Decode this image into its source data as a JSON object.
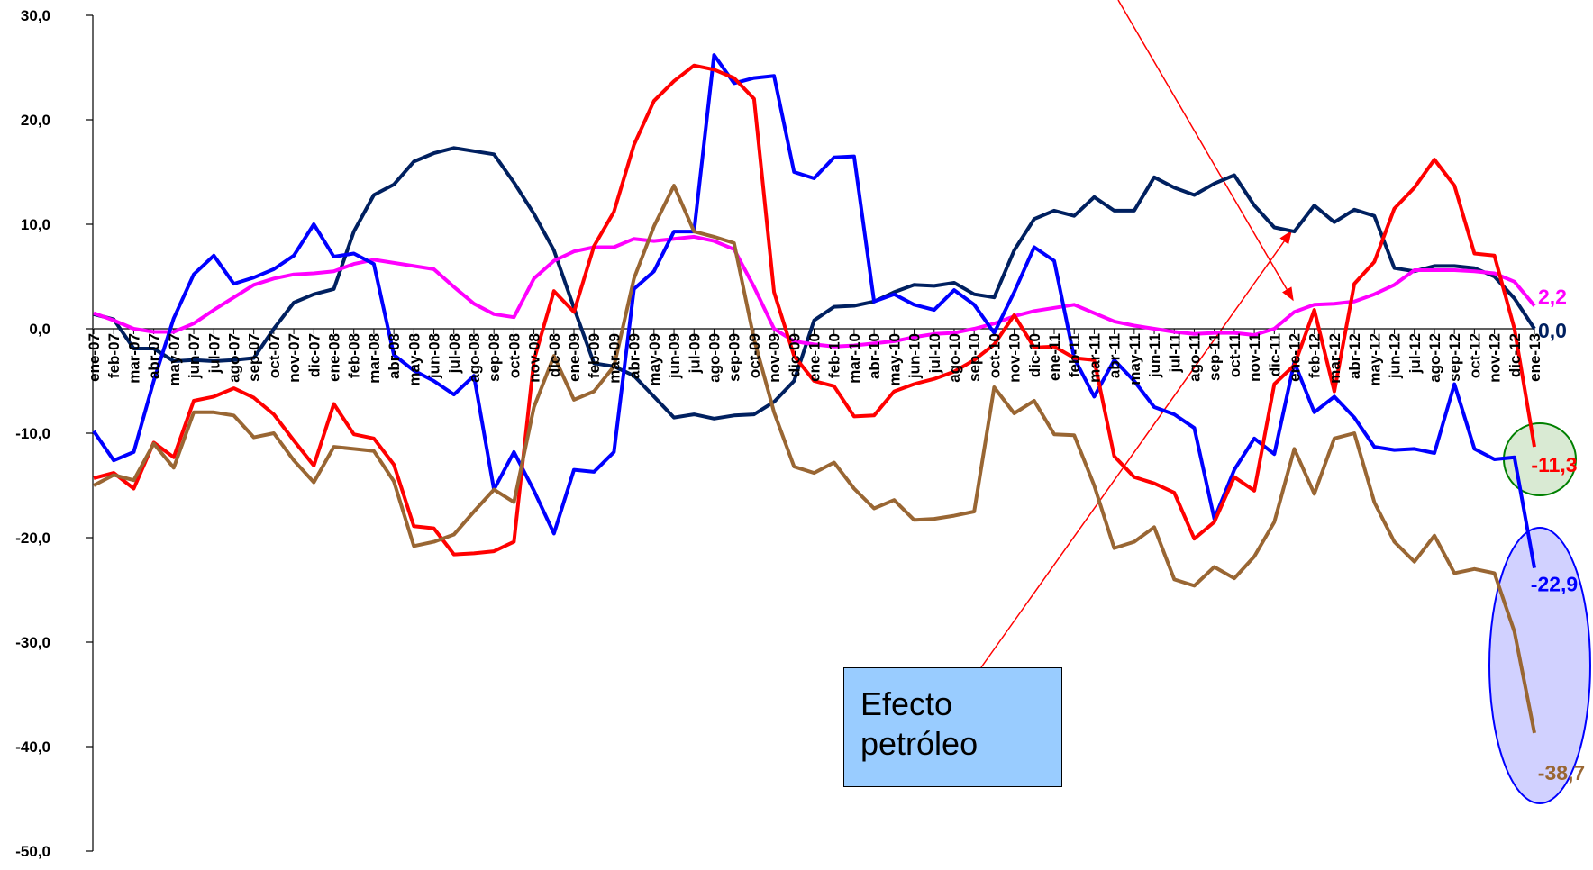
{
  "chart_data": {
    "type": "line",
    "categories": [
      "ene-07",
      "feb-07",
      "mar-07",
      "abr-07",
      "may-07",
      "jun-07",
      "jul-07",
      "ago-07",
      "sep-07",
      "oct-07",
      "nov-07",
      "dic-07",
      "ene-08",
      "feb-08",
      "mar-08",
      "abr-08",
      "may-08",
      "jun-08",
      "jul-08",
      "ago-08",
      "sep-08",
      "oct-08",
      "nov-08",
      "dic-08",
      "ene-09",
      "feb-09",
      "mar-09",
      "abr-09",
      "may-09",
      "jun-09",
      "jul-09",
      "ago-09",
      "sep-09",
      "oct-09",
      "nov-09",
      "dic-09",
      "ene-10",
      "feb-10",
      "mar-10",
      "abr-10",
      "may-10",
      "jun-10",
      "jul-10",
      "ago-10",
      "sep-10",
      "oct-10",
      "nov-10",
      "dic-10",
      "ene-11",
      "feb-11",
      "mar-11",
      "abr-11",
      "may-11",
      "jun-11",
      "jul-11",
      "ago-11",
      "sep-11",
      "oct-11",
      "nov-11",
      "dic-11",
      "ene-12",
      "feb-12",
      "mar-12",
      "abr-12",
      "may-12",
      "jun-12",
      "jul-12",
      "ago-12",
      "sep-12",
      "oct-12",
      "nov-12",
      "dic-12",
      "ene-13"
    ],
    "ylim": [
      -50,
      30
    ],
    "yticks": [
      {
        "value": -50,
        "label": "-50,0"
      },
      {
        "value": -40,
        "label": "-40,0"
      },
      {
        "value": -30,
        "label": "-30,0"
      },
      {
        "value": -20,
        "label": "-20,0"
      },
      {
        "value": -10,
        "label": "-10,0"
      },
      {
        "value": 0,
        "label": "0,0"
      },
      {
        "value": 10,
        "label": "10,0"
      },
      {
        "value": 20,
        "label": "20,0"
      },
      {
        "value": 30,
        "label": "30,0"
      }
    ],
    "series": [
      {
        "color": "#002060",
        "values": [
          1.4,
          0.9,
          -1.9,
          -1.9,
          -3.1,
          -3.0,
          -3.1,
          -3.0,
          -2.8,
          0.0,
          2.5,
          3.3,
          3.8,
          9.3,
          12.8,
          13.8,
          16.0,
          16.8,
          17.3,
          17.0,
          16.7,
          14.0,
          11.0,
          7.5,
          2.0,
          -3.3,
          -3.6,
          -4.5,
          -6.5,
          -8.5,
          -8.2,
          -8.6,
          -8.3,
          -8.2,
          -7.0,
          -5.0,
          0.8,
          2.1,
          2.2,
          2.6,
          3.5,
          4.2,
          4.1,
          4.4,
          3.3,
          3.0,
          7.5,
          10.5,
          11.3,
          10.8,
          12.6,
          11.3,
          11.3,
          14.5,
          13.5,
          12.8,
          13.9,
          14.7,
          11.8,
          9.7,
          9.3,
          11.8,
          10.2,
          11.4,
          10.8,
          5.8,
          5.5,
          6.0,
          6.0,
          5.8,
          5.0,
          2.9,
          0.0
        ],
        "value_labels": [
          null,
          null,
          null,
          null,
          null,
          null,
          null,
          null,
          null,
          null,
          null,
          null,
          null,
          null,
          null,
          null,
          null,
          null,
          null,
          null,
          null,
          null,
          null,
          null,
          null,
          null,
          null,
          null,
          null,
          null,
          null,
          null,
          null,
          null,
          null,
          null,
          null,
          null,
          null,
          null,
          null,
          null,
          null,
          null,
          null,
          null,
          null,
          null,
          null,
          null,
          null,
          null,
          null,
          null,
          null,
          null,
          null,
          null,
          null,
          null,
          null,
          null,
          null,
          null,
          null,
          null,
          null,
          null,
          null,
          null,
          null,
          null,
          "0,0"
        ]
      },
      {
        "color": "#ff00ff",
        "values": [
          1.5,
          0.8,
          0,
          -0.3,
          -0.3,
          0.5,
          1.8,
          3,
          4.2,
          4.8,
          5.2,
          5.3,
          5.5,
          6.2,
          6.6,
          6.3,
          6.0,
          5.7,
          4,
          2.4,
          1.4,
          1.1,
          4.8,
          6.5,
          7.4,
          7.8,
          7.8,
          8.6,
          8.4,
          8.6,
          8.8,
          8.4,
          7.6,
          4,
          0,
          -1.2,
          -1.5,
          -1.7,
          -1.6,
          -1.4,
          -1.2,
          -0.8,
          -0.5,
          -0.4,
          0,
          0.5,
          1.2,
          1.7,
          2.0,
          2.3,
          1.5,
          0.7,
          0.3,
          0,
          -0.3,
          -0.5,
          -0.4,
          -0.4,
          -0.6,
          0,
          1.6,
          2.3,
          2.4,
          2.6,
          3.3,
          4.2,
          5.6,
          5.6,
          5.6,
          5.5,
          5.3,
          4.5,
          2.2
        ],
        "value_labels": [
          null,
          null,
          null,
          null,
          null,
          null,
          null,
          null,
          null,
          null,
          null,
          null,
          null,
          null,
          null,
          null,
          null,
          null,
          null,
          null,
          null,
          null,
          null,
          null,
          null,
          null,
          null,
          null,
          null,
          null,
          null,
          null,
          null,
          null,
          null,
          null,
          null,
          null,
          null,
          null,
          null,
          null,
          null,
          null,
          null,
          null,
          null,
          null,
          null,
          null,
          null,
          null,
          null,
          null,
          null,
          null,
          null,
          null,
          null,
          null,
          null,
          null,
          null,
          null,
          null,
          null,
          null,
          null,
          null,
          null,
          null,
          null,
          "2,2"
        ]
      },
      {
        "color": "#0000ff",
        "values": [
          -9.8,
          -12.6,
          -11.8,
          -5,
          1,
          5.2,
          7,
          4.3,
          4.9,
          5.7,
          7,
          10,
          6.9,
          7.2,
          6.2,
          -2.5,
          -4,
          -5,
          -6.3,
          -4.5,
          -15.4,
          -11.8,
          -15.5,
          -19.6,
          -13.5,
          -13.7,
          -11.8,
          3.8,
          5.5,
          9.3,
          9.3,
          26.2,
          23.5,
          24,
          24.2,
          15,
          14.4,
          16.4,
          16.5,
          2.6,
          3.3,
          2.3,
          1.8,
          3.7,
          2.3,
          -0.4,
          3.5,
          7.8,
          6.5,
          -2.8,
          -6.5,
          -3,
          -5,
          -7.5,
          -8.2,
          -9.5,
          -18.2,
          -13.5,
          -10.5,
          -12,
          -3.2,
          -8,
          -6.5,
          -8.5,
          -11.3,
          -11.6,
          -11.5,
          -11.9,
          -5.3,
          -11.5,
          -12.5,
          -12.3,
          -22.9
        ],
        "value_labels": [
          null,
          null,
          null,
          null,
          null,
          null,
          null,
          null,
          null,
          null,
          null,
          null,
          null,
          null,
          null,
          null,
          null,
          null,
          null,
          null,
          null,
          null,
          null,
          null,
          null,
          null,
          null,
          null,
          null,
          null,
          null,
          null,
          null,
          null,
          null,
          null,
          null,
          null,
          null,
          null,
          null,
          null,
          null,
          null,
          null,
          null,
          null,
          null,
          null,
          null,
          null,
          null,
          null,
          null,
          null,
          null,
          null,
          null,
          null,
          null,
          null,
          null,
          null,
          null,
          null,
          null,
          null,
          null,
          null,
          null,
          null,
          null,
          "-22,9"
        ]
      },
      {
        "color": "#ff0000",
        "values": [
          -14.3,
          -13.8,
          -15.3,
          -10.9,
          -12.3,
          -6.9,
          -6.5,
          -5.7,
          -6.6,
          -8.2,
          -10.7,
          -13.1,
          -7.2,
          -10.1,
          -10.5,
          -13,
          -18.9,
          -19.1,
          -21.6,
          -21.5,
          -21.3,
          -20.4,
          -3,
          3.6,
          1.6,
          7.9,
          11.2,
          17.6,
          21.8,
          23.7,
          25.2,
          24.8,
          24,
          22,
          3.5,
          -2.6,
          -5,
          -5.5,
          -8.4,
          -8.3,
          -6,
          -5.3,
          -4.8,
          -4.1,
          -3,
          -1.5,
          1.3,
          -1.8,
          -1.7,
          -2.8,
          -3,
          -12.2,
          -14.2,
          -14.8,
          -15.7,
          -20.1,
          -18.5,
          -14.2,
          -15.5,
          -5.3,
          -3.5,
          1.8,
          -6,
          4.3,
          6.4,
          11.5,
          13.5,
          16.2,
          13.7,
          7.2,
          7.0,
          0,
          -11.3
        ],
        "value_labels": [
          null,
          null,
          null,
          null,
          null,
          null,
          null,
          null,
          null,
          null,
          null,
          null,
          null,
          null,
          null,
          null,
          null,
          null,
          null,
          null,
          null,
          null,
          null,
          null,
          null,
          null,
          null,
          null,
          null,
          null,
          null,
          null,
          null,
          null,
          null,
          null,
          null,
          null,
          null,
          null,
          null,
          null,
          null,
          null,
          null,
          null,
          null,
          null,
          null,
          null,
          null,
          null,
          null,
          null,
          null,
          null,
          null,
          null,
          null,
          null,
          null,
          null,
          null,
          null,
          null,
          null,
          null,
          null,
          null,
          null,
          null,
          null,
          "-11,3"
        ]
      },
      {
        "color": "#996633",
        "values": [
          -15,
          -14,
          -14.5,
          -11,
          -13.3,
          -8,
          -8,
          -8.3,
          -10.4,
          -10,
          -12.6,
          -14.7,
          -11.3,
          -11.5,
          -11.7,
          -14.6,
          -20.8,
          -20.4,
          -19.7,
          -17.5,
          -15.4,
          -16.6,
          -7.5,
          -2.6,
          -6.8,
          -6,
          -3.6,
          4.8,
          9.8,
          13.7,
          9.3,
          8.8,
          8.2,
          -1,
          -8,
          -13.2,
          -13.8,
          -12.8,
          -15.3,
          -17.2,
          -16.4,
          -18.3,
          -18.2,
          -17.9,
          -17.5,
          -5.6,
          -8.1,
          -6.9,
          -10.1,
          -10.2,
          -15,
          -21,
          -20.4,
          -19,
          -24,
          -24.6,
          -22.8,
          -23.9,
          -21.8,
          -18.5,
          -11.5,
          -15.8,
          -10.5,
          -10,
          -16.6,
          -20.4,
          -22.3,
          -19.8,
          -23.4,
          -23,
          -23.4,
          -29,
          -38.7
        ],
        "value_labels": [
          null,
          null,
          null,
          null,
          null,
          null,
          null,
          null,
          null,
          null,
          null,
          null,
          null,
          null,
          null,
          null,
          null,
          null,
          null,
          null,
          null,
          null,
          null,
          null,
          null,
          null,
          null,
          null,
          null,
          null,
          null,
          null,
          null,
          null,
          null,
          null,
          null,
          null,
          null,
          null,
          null,
          null,
          null,
          null,
          null,
          null,
          null,
          null,
          null,
          null,
          null,
          null,
          null,
          null,
          null,
          null,
          null,
          null,
          null,
          null,
          null,
          null,
          null,
          null,
          null,
          null,
          null,
          null,
          null,
          null,
          null,
          null,
          "-38,7"
        ]
      }
    ],
    "annotation": "Efecto petróleo"
  }
}
